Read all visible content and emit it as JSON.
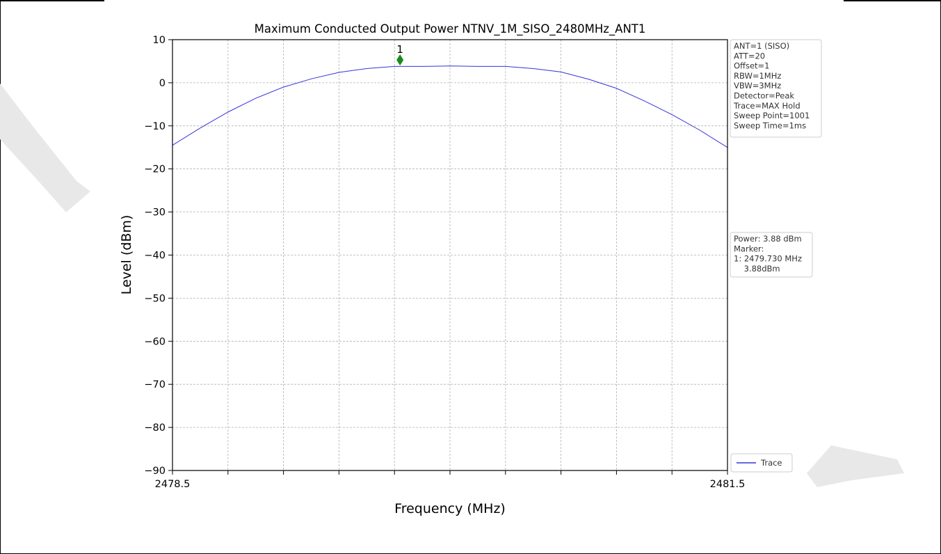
{
  "chart_data": {
    "type": "line",
    "title": "Maximum Conducted Output Power NTNV_1M_SISO_2480MHz_ANT1",
    "xlabel": "Frequency (MHz)",
    "ylabel": "Level (dBm)",
    "xlim": [
      2478.5,
      2481.5
    ],
    "ylim": [
      -90,
      10
    ],
    "x_tick_labels": [
      {
        "value": 2478.5,
        "label": "2478.5"
      },
      {
        "value": 2481.5,
        "label": "2481.5"
      }
    ],
    "x_ticks": [
      2478.5,
      2478.8,
      2479.1,
      2479.4,
      2479.7,
      2480.0,
      2480.3,
      2480.6,
      2480.9,
      2481.2,
      2481.5
    ],
    "y_ticks": [
      10,
      0,
      -10,
      -20,
      -30,
      -40,
      -50,
      -60,
      -70,
      -80,
      -90
    ],
    "y_tick_labels": [
      "10",
      "0",
      "−10",
      "−20",
      "−30",
      "−40",
      "−50",
      "−60",
      "−70",
      "−80",
      "−90"
    ],
    "grid": true,
    "series": [
      {
        "name": "Trace",
        "color": "#3333dd",
        "x": [
          2478.5,
          2478.65,
          2478.8,
          2478.95,
          2479.1,
          2479.25,
          2479.4,
          2479.55,
          2479.7,
          2479.85,
          2480.0,
          2480.15,
          2480.3,
          2480.45,
          2480.6,
          2480.75,
          2480.9,
          2481.05,
          2481.2,
          2481.35,
          2481.5
        ],
        "y": [
          -14.5,
          -10.5,
          -6.8,
          -3.6,
          -1.0,
          0.9,
          2.4,
          3.3,
          3.8,
          3.8,
          3.9,
          3.8,
          3.8,
          3.3,
          2.5,
          0.8,
          -1.3,
          -4.2,
          -7.4,
          -11.0,
          -15.0
        ]
      }
    ],
    "markers": [
      {
        "label": "1",
        "x": 2479.73,
        "y": 5.3,
        "color": "#1a8a1a"
      }
    ],
    "legend": {
      "placement": "bottom-right-outside",
      "entries": [
        "Trace"
      ]
    },
    "settings_box": {
      "lines": [
        "ANT=1 (SISO)",
        "ATT=20",
        "Offset=1",
        "RBW=1MHz",
        "VBW=3MHz",
        "Detector=Peak",
        "Trace=MAX Hold",
        "Sweep Point=1001",
        "Sweep Time=1ms"
      ]
    },
    "result_box": {
      "lines": [
        "Power: 3.88 dBm",
        "Marker:",
        "1: 2479.730 MHz",
        "    3.88dBm"
      ]
    }
  },
  "colors": {
    "watermark": "#e6e6e6",
    "grid": "#b0b0b0",
    "axis": "#000000"
  }
}
